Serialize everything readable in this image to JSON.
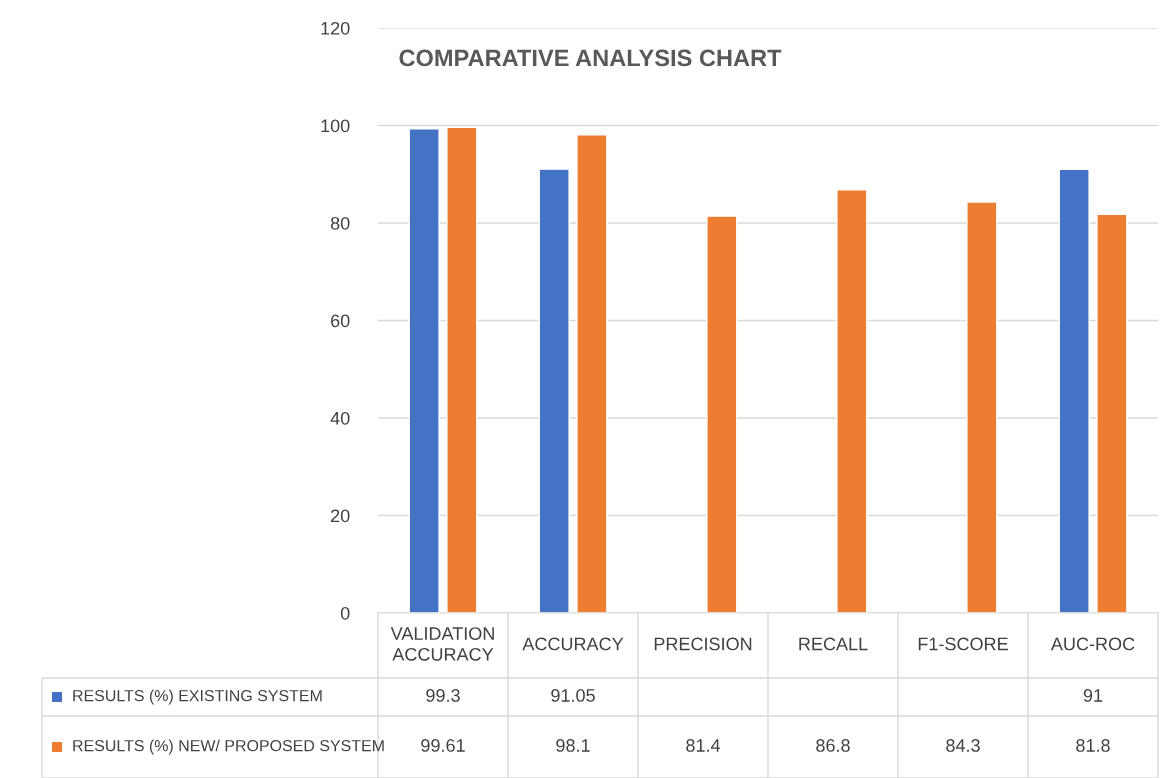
{
  "chart_data": {
    "type": "bar",
    "title": "COMPARATIVE ANALYSIS CHART",
    "categories": [
      "VALIDATION ACCURACY",
      "ACCURACY",
      "PRECISION",
      "RECALL",
      "F1-SCORE",
      "AUC-ROC"
    ],
    "series": [
      {
        "name": "RESULTS (%) EXISTING SYSTEM",
        "color": "#4472c4",
        "values": [
          99.3,
          91.05,
          null,
          null,
          null,
          91
        ]
      },
      {
        "name": "RESULTS (%) NEW/ PROPOSED SYSTEM",
        "color": "#ed7d31",
        "values": [
          99.61,
          98.1,
          81.4,
          86.8,
          84.3,
          81.8
        ]
      }
    ],
    "ylim": [
      0,
      120
    ],
    "yticks": [
      0,
      20,
      40,
      60,
      80,
      100,
      120
    ],
    "grid": "y",
    "data_labels": true,
    "legend": "bottom"
  }
}
